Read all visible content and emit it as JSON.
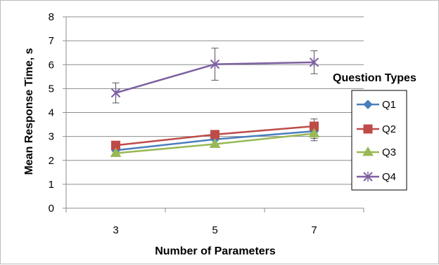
{
  "chart_data": {
    "type": "line",
    "title": "",
    "xlabel": "Number of Parameters",
    "ylabel": "Mean Response Time, s",
    "categories": [
      "3",
      "5",
      "7"
    ],
    "ylim": [
      0,
      8
    ],
    "yticks": [
      "0",
      "1",
      "2",
      "3",
      "4",
      "5",
      "6",
      "7",
      "8"
    ],
    "grid": true,
    "legend": {
      "title": "Question Types",
      "placement": "right"
    },
    "series": [
      {
        "name": "Q1",
        "values": [
          2.42,
          2.88,
          3.22
        ],
        "error": [
          null,
          null,
          0.3
        ],
        "color": "#4a7ebb",
        "marker": "diamond"
      },
      {
        "name": "Q2",
        "values": [
          2.63,
          3.08,
          3.43
        ],
        "error": [
          null,
          null,
          0.3
        ],
        "color": "#be4b48",
        "marker": "square"
      },
      {
        "name": "Q3",
        "values": [
          2.3,
          2.68,
          3.12
        ],
        "error": [
          null,
          null,
          0.3
        ],
        "color": "#98b954",
        "marker": "triangle"
      },
      {
        "name": "Q4",
        "values": [
          4.82,
          6.02,
          6.1
        ],
        "error": [
          0.42,
          0.67,
          0.48
        ],
        "color": "#7d60a0",
        "marker": "x"
      }
    ]
  }
}
